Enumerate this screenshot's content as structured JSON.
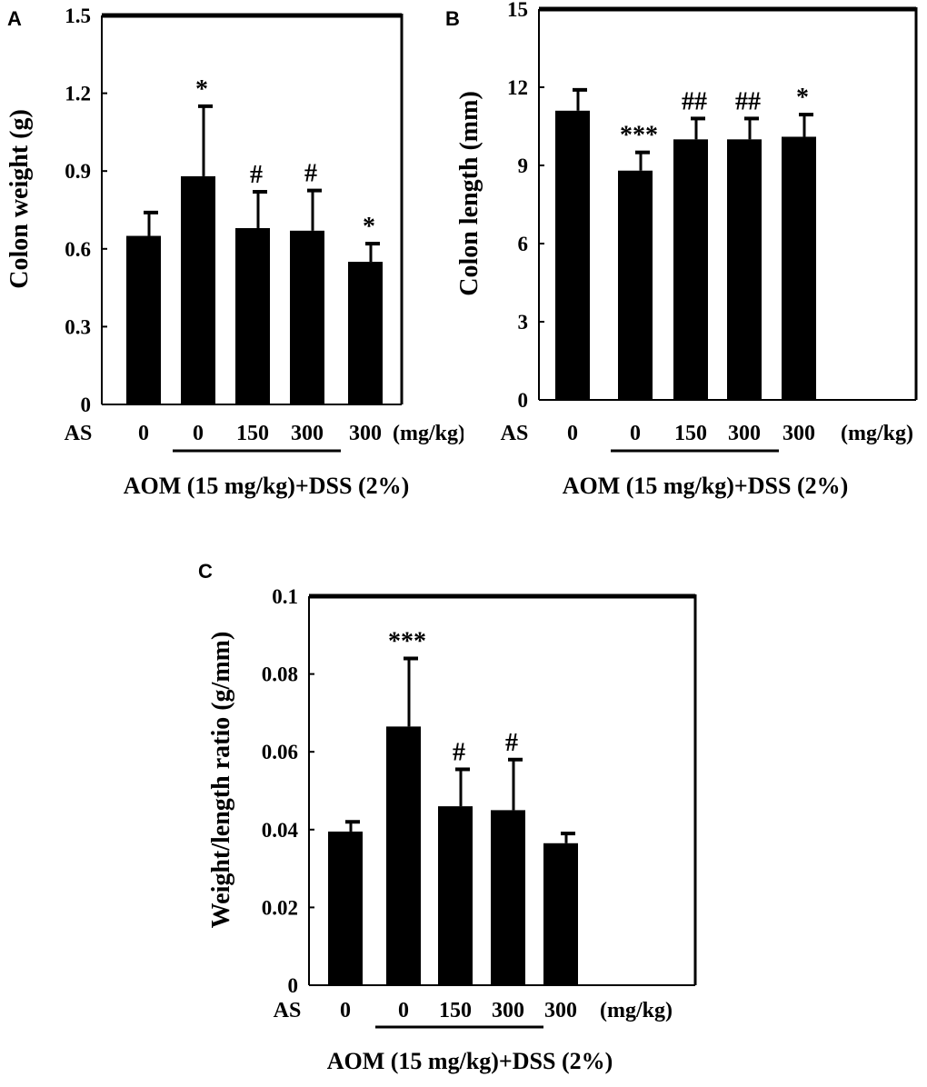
{
  "chart_data": [
    {
      "panel_label": "A",
      "type": "bar",
      "ylabel": "Colon weight (g)",
      "ylim": [
        0,
        1.5
      ],
      "yticks": [
        "0",
        "0.3",
        "0.6",
        "0.9",
        "1.2",
        "1.5"
      ],
      "x_prefix": "AS",
      "categories": [
        "0",
        "0",
        "150",
        "300",
        "300"
      ],
      "x_unit": "(mg/kg)",
      "group_label": "AOM (15 mg/kg)+DSS (2%)",
      "values": [
        0.65,
        0.88,
        0.68,
        0.67,
        0.55
      ],
      "errors": [
        0.09,
        0.27,
        0.14,
        0.155,
        0.07
      ],
      "significance": [
        "",
        "*",
        "#",
        "#",
        "*"
      ]
    },
    {
      "panel_label": "B",
      "type": "bar",
      "ylabel": "Colon length (mm)",
      "ylim": [
        0,
        15
      ],
      "yticks": [
        "0",
        "3",
        "6",
        "9",
        "12",
        "15"
      ],
      "x_prefix": "AS",
      "categories": [
        "0",
        "0",
        "150",
        "300",
        "300"
      ],
      "x_unit": "(mg/kg)",
      "group_label": "AOM (15 mg/kg)+DSS (2%)",
      "values": [
        11.1,
        8.8,
        10.0,
        10.0,
        10.1
      ],
      "errors": [
        0.8,
        0.7,
        0.8,
        0.8,
        0.85
      ],
      "significance": [
        "",
        "***",
        "##",
        "##",
        "*"
      ]
    },
    {
      "panel_label": "C",
      "type": "bar",
      "ylabel": "Weight/length ratio (g/mm)",
      "ylim": [
        0,
        0.1
      ],
      "yticks": [
        "0",
        "0.02",
        "0.04",
        "0.06",
        "0.08",
        "0.1"
      ],
      "x_prefix": "AS",
      "categories": [
        "0",
        "0",
        "150",
        "300",
        "300"
      ],
      "x_unit": "(mg/kg)",
      "group_label": "AOM (15 mg/kg)+DSS (2%)",
      "values": [
        0.0395,
        0.0665,
        0.046,
        0.045,
        0.0365
      ],
      "errors": [
        0.0025,
        0.0175,
        0.0095,
        0.013,
        0.0025
      ],
      "significance": [
        "",
        "***",
        "#",
        "#",
        ""
      ]
    }
  ]
}
